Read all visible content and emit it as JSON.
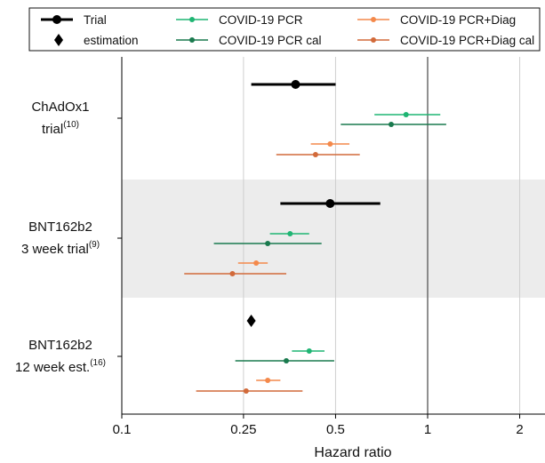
{
  "chart_data": {
    "type": "forest",
    "xlabel": "Hazard ratio",
    "xscale": "log",
    "xlim": [
      0.1,
      2.5
    ],
    "xticks": [
      {
        "value": 0.1,
        "label": "0.1"
      },
      {
        "value": 0.25,
        "label": "0.25"
      },
      {
        "value": 0.5,
        "label": "0.5"
      },
      {
        "value": 1,
        "label": "1"
      },
      {
        "value": 2,
        "label": "2"
      }
    ],
    "reference_line": 1,
    "grid": "vertical at 0.25, 0.5, 2",
    "legend_position": "top",
    "groups": [
      {
        "label": "ChAdOx1",
        "label_line2": "trial",
        "sup": "(10)",
        "shaded": false
      },
      {
        "label": "BNT162b2",
        "label_line2": "3 week trial",
        "sup": "(9)",
        "shaded": true
      },
      {
        "label": "BNT162b2",
        "label_line2": "12 week est.",
        "sup": "(16)",
        "shaded": false
      }
    ],
    "series": [
      {
        "name": "Trial",
        "color": "#000000",
        "marker": "circle",
        "size": "large",
        "points": [
          {
            "group": 0,
            "est": 0.37,
            "lo": 0.265,
            "hi": 0.5
          },
          {
            "group": 1,
            "est": 0.48,
            "lo": 0.33,
            "hi": 0.7
          }
        ]
      },
      {
        "name": "estimation",
        "color": "#000000",
        "marker": "diamond",
        "points": [
          {
            "group": 2,
            "est": 0.265
          }
        ]
      },
      {
        "name": "COVID-19 PCR",
        "color": "#1fb573",
        "marker": "circle",
        "size": "small",
        "points": [
          {
            "group": 0,
            "est": 0.85,
            "lo": 0.67,
            "hi": 1.1
          },
          {
            "group": 1,
            "est": 0.355,
            "lo": 0.305,
            "hi": 0.41
          },
          {
            "group": 2,
            "est": 0.41,
            "lo": 0.36,
            "hi": 0.46
          }
        ]
      },
      {
        "name": "COVID-19 PCR cal",
        "color": "#1a7a4e",
        "marker": "circle",
        "size": "small",
        "points": [
          {
            "group": 0,
            "est": 0.76,
            "lo": 0.52,
            "hi": 1.15
          },
          {
            "group": 1,
            "est": 0.3,
            "lo": 0.2,
            "hi": 0.45
          },
          {
            "group": 2,
            "est": 0.345,
            "lo": 0.235,
            "hi": 0.495
          }
        ]
      },
      {
        "name": "COVID-19 PCR+Diag",
        "color": "#f4894b",
        "marker": "circle",
        "size": "small",
        "points": [
          {
            "group": 0,
            "est": 0.48,
            "lo": 0.415,
            "hi": 0.555
          },
          {
            "group": 1,
            "est": 0.275,
            "lo": 0.24,
            "hi": 0.3
          },
          {
            "group": 2,
            "est": 0.3,
            "lo": 0.275,
            "hi": 0.33
          }
        ]
      },
      {
        "name": "COVID-19 PCR+Diag cal",
        "color": "#d26a3a",
        "marker": "circle",
        "size": "small",
        "points": [
          {
            "group": 0,
            "est": 0.43,
            "lo": 0.32,
            "hi": 0.6
          },
          {
            "group": 1,
            "est": 0.23,
            "lo": 0.16,
            "hi": 0.345
          },
          {
            "group": 2,
            "est": 0.255,
            "lo": 0.175,
            "hi": 0.39
          }
        ]
      }
    ]
  }
}
